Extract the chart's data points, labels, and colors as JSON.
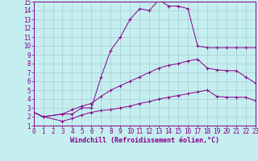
{
  "xlabel": "Windchill (Refroidissement éolien,°C)",
  "xlim": [
    0,
    23
  ],
  "ylim": [
    1,
    15
  ],
  "xticks": [
    0,
    1,
    2,
    3,
    4,
    5,
    6,
    7,
    8,
    9,
    10,
    11,
    12,
    13,
    14,
    15,
    16,
    17,
    18,
    19,
    20,
    21,
    22,
    23
  ],
  "yticks": [
    1,
    2,
    3,
    4,
    5,
    6,
    7,
    8,
    9,
    10,
    11,
    12,
    13,
    14,
    15
  ],
  "bg_color": "#c5eef0",
  "line_color": "#880088",
  "grid_color": "#a8ccd0",
  "line1_x": [
    0,
    1,
    3,
    4,
    5,
    6,
    7,
    8,
    9,
    10,
    11,
    12,
    13,
    14,
    15,
    16,
    17,
    18,
    19,
    20,
    21,
    22,
    23
  ],
  "line1_y": [
    2.5,
    2.0,
    2.3,
    2.3,
    3.0,
    3.0,
    6.5,
    9.5,
    11.0,
    13.0,
    14.2,
    14.0,
    15.2,
    14.5,
    14.5,
    14.2,
    10.0,
    9.8,
    9.8,
    9.8,
    9.8,
    9.8,
    9.8
  ],
  "line2_x": [
    0,
    1,
    3,
    4,
    5,
    6,
    7,
    8,
    9,
    10,
    11,
    12,
    13,
    14,
    15,
    16,
    17,
    18,
    19,
    20,
    21,
    22,
    23
  ],
  "line2_y": [
    2.5,
    2.0,
    2.3,
    2.8,
    3.2,
    3.5,
    4.3,
    5.0,
    5.5,
    6.0,
    6.5,
    7.0,
    7.5,
    7.8,
    8.0,
    8.3,
    8.5,
    7.5,
    7.3,
    7.2,
    7.2,
    6.5,
    5.8
  ],
  "line3_x": [
    0,
    1,
    3,
    4,
    5,
    6,
    7,
    8,
    9,
    10,
    11,
    12,
    13,
    14,
    15,
    16,
    17,
    18,
    19,
    20,
    21,
    22,
    23
  ],
  "line3_y": [
    2.5,
    2.0,
    1.5,
    1.8,
    2.2,
    2.5,
    2.7,
    2.8,
    3.0,
    3.2,
    3.5,
    3.7,
    4.0,
    4.2,
    4.4,
    4.6,
    4.8,
    5.0,
    4.3,
    4.2,
    4.2,
    4.2,
    3.8
  ],
  "xlabel_fontsize": 6,
  "tick_fontsize": 5.5
}
